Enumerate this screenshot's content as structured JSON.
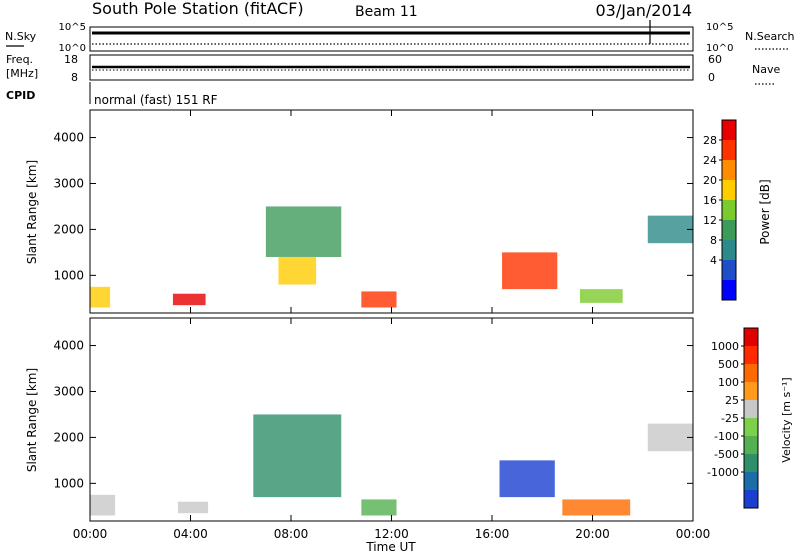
{
  "header": {
    "station": "South Pole Station (fitACF)",
    "beam": "Beam 11",
    "date": "03/Jan/2014"
  },
  "summary_panels": {
    "nsky": {
      "label": "N.Sky",
      "ticks": [
        "10^5",
        "10^0"
      ]
    },
    "nsearch": {
      "label": "N.Search",
      "ticks": [
        "10^5",
        "10^0"
      ]
    },
    "freq": {
      "label_line1": "Freq.",
      "label_line2": "[MHz]",
      "ticks": [
        "18",
        "8"
      ]
    },
    "nave": {
      "label": "Nave",
      "ticks": [
        "60",
        "0"
      ]
    },
    "cpid": {
      "label": "CPID",
      "text": "normal (fast) 151 RF"
    }
  },
  "chart_data": [
    {
      "type": "heatmap",
      "name": "power",
      "ylabel": "Slant Range [km]",
      "yticks": [
        "4000",
        "3000",
        "2000",
        "1000"
      ],
      "ylim": [
        180,
        4600
      ],
      "xlabel": "Time UT",
      "xticks": [
        "00:00",
        "04:00",
        "08:00",
        "12:00",
        "16:00",
        "20:00",
        "00:00"
      ],
      "xlim": [
        0,
        24
      ],
      "colorbar": {
        "label": "Power [dB]",
        "ticks": [
          "28",
          "24",
          "20",
          "16",
          "12",
          "8",
          "4"
        ],
        "colors": [
          "#0000ff",
          "#1e4fc8",
          "#2d8a8a",
          "#3d9b5a",
          "#7ccb2e",
          "#ffcc00",
          "#ff8c00",
          "#ff3300",
          "#e60000"
        ]
      },
      "regions": [
        {
          "t0": 0.0,
          "t1": 0.8,
          "r0": 300,
          "r1": 750,
          "level": 5
        },
        {
          "t0": 3.3,
          "t1": 4.6,
          "r0": 350,
          "r1": 600,
          "level": 8
        },
        {
          "t0": 7.0,
          "t1": 10.0,
          "r0": 1400,
          "r1": 2500,
          "level": 3
        },
        {
          "t0": 7.5,
          "t1": 9.0,
          "r0": 800,
          "r1": 1400,
          "level": 5
        },
        {
          "t0": 10.8,
          "t1": 12.2,
          "r0": 300,
          "r1": 650,
          "level": 7
        },
        {
          "t0": 16.4,
          "t1": 18.6,
          "r0": 700,
          "r1": 1500,
          "level": 7
        },
        {
          "t0": 19.5,
          "t1": 21.2,
          "r0": 400,
          "r1": 700,
          "level": 4
        },
        {
          "t0": 22.2,
          "t1": 24.0,
          "r0": 1700,
          "r1": 2300,
          "level": 2
        }
      ]
    },
    {
      "type": "heatmap",
      "name": "velocity",
      "ylabel": "Slant Range [km]",
      "yticks": [
        "4000",
        "3000",
        "2000",
        "1000"
      ],
      "ylim": [
        180,
        4600
      ],
      "xlabel": "Time UT",
      "xticks": [
        "00:00",
        "04:00",
        "08:00",
        "12:00",
        "16:00",
        "20:00",
        "00:00"
      ],
      "xlim": [
        0,
        24
      ],
      "colorbar": {
        "label": "Velocity [m s⁻¹]",
        "ticks": [
          "1000",
          "500",
          "100",
          "25",
          "-25",
          "-100",
          "-500",
          "-1000"
        ],
        "colors": [
          "#1a3fcf",
          "#1a6ea8",
          "#2f8f6a",
          "#54b050",
          "#7cd04a",
          "#c8c8c8",
          "#ff9a1a",
          "#ff6a00",
          "#ff2a00",
          "#e00000"
        ]
      },
      "regions": [
        {
          "t0": 0.0,
          "t1": 1.0,
          "r0": 300,
          "r1": 750,
          "level": 5
        },
        {
          "t0": 3.5,
          "t1": 4.7,
          "r0": 350,
          "r1": 600,
          "level": 5
        },
        {
          "t0": 6.5,
          "t1": 10.0,
          "r0": 700,
          "r1": 2500,
          "level": 2
        },
        {
          "t0": 10.8,
          "t1": 12.2,
          "r0": 300,
          "r1": 650,
          "level": 3
        },
        {
          "t0": 16.3,
          "t1": 18.5,
          "r0": 700,
          "r1": 1500,
          "level": 0
        },
        {
          "t0": 18.8,
          "t1": 21.5,
          "r0": 300,
          "r1": 650,
          "level": 7
        },
        {
          "t0": 22.2,
          "t1": 24.0,
          "r0": 1700,
          "r1": 2300,
          "level": 5
        }
      ]
    }
  ]
}
